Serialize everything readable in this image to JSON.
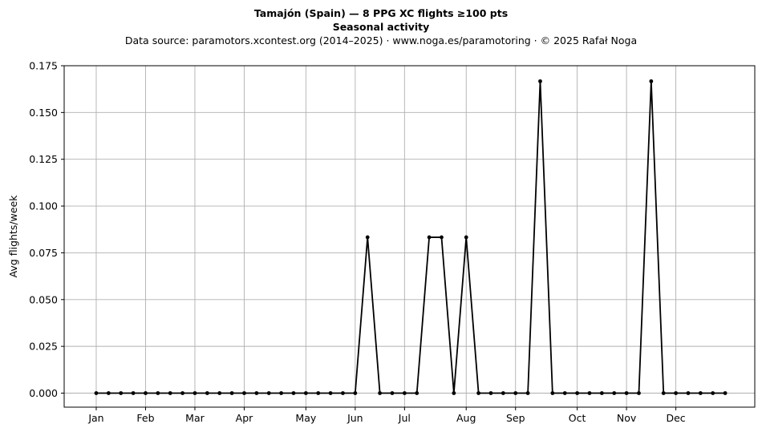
{
  "title": {
    "line1": "Tamajón (Spain)  —  8 PPG XC flights ≥100 pts",
    "line2": "Seasonal activity",
    "line3": "Data source: paramotors.xcontest.org (2014–2025)  ·  www.noga.es/paramotoring  ·  © 2025 Rafał Noga"
  },
  "chart_data": {
    "type": "line",
    "ylabel": "Avg flights/week",
    "xlabel": "",
    "ylim": [
      -0.0075,
      0.175
    ],
    "xlim": [
      -2.6,
      53.4
    ],
    "grid": true,
    "x_ticks": [
      {
        "label": "Jan",
        "x": 0
      },
      {
        "label": "Feb",
        "x": 4
      },
      {
        "label": "Mar",
        "x": 8
      },
      {
        "label": "Apr",
        "x": 12
      },
      {
        "label": "May",
        "x": 17
      },
      {
        "label": "Jun",
        "x": 21
      },
      {
        "label": "Jul",
        "x": 25
      },
      {
        "label": "Aug",
        "x": 30
      },
      {
        "label": "Sep",
        "x": 34
      },
      {
        "label": "Oct",
        "x": 39
      },
      {
        "label": "Nov",
        "x": 43
      },
      {
        "label": "Dec",
        "x": 47
      }
    ],
    "y_ticks": [
      {
        "label": "0.000",
        "v": 0
      },
      {
        "label": "0.025",
        "v": 0.025
      },
      {
        "label": "0.050",
        "v": 0.05
      },
      {
        "label": "0.075",
        "v": 0.075
      },
      {
        "label": "0.100",
        "v": 0.1
      },
      {
        "label": "0.125",
        "v": 0.125
      },
      {
        "label": "0.150",
        "v": 0.15
      },
      {
        "label": "0.175",
        "v": 0.175
      }
    ],
    "series": [
      {
        "color": "#000000",
        "x": [
          0,
          1,
          2,
          3,
          4,
          5,
          6,
          7,
          8,
          9,
          10,
          11,
          12,
          13,
          14,
          15,
          16,
          17,
          18,
          19,
          20,
          21,
          22,
          23,
          24,
          25,
          26,
          27,
          28,
          29,
          30,
          31,
          32,
          33,
          34,
          35,
          36,
          37,
          38,
          39,
          40,
          41,
          42,
          43,
          44,
          45,
          46,
          47,
          48,
          49,
          50,
          51
        ],
        "values": [
          0,
          0,
          0,
          0,
          0,
          0,
          0,
          0,
          0,
          0,
          0,
          0,
          0,
          0,
          0,
          0,
          0,
          0,
          0,
          0,
          0,
          0,
          0.0833,
          0,
          0,
          0,
          0,
          0.0833,
          0.0833,
          0,
          0.0833,
          0,
          0,
          0,
          0,
          0,
          0.1667,
          0,
          0,
          0,
          0,
          0,
          0,
          0,
          0,
          0.1667,
          0,
          0,
          0,
          0,
          0,
          0
        ]
      }
    ]
  }
}
